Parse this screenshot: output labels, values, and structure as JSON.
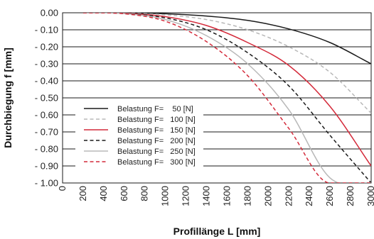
{
  "chart_data": {
    "type": "line",
    "xlabel": "Profillänge L  [mm]",
    "ylabel": "Durchbiegung f [mm]",
    "xlim": [
      0,
      3000
    ],
    "ylim": [
      -1.0,
      0.0
    ],
    "grid": "horizontal",
    "legend_position": "bottom-left",
    "x_ticks": [
      "0",
      "200",
      "400",
      "600",
      "800",
      "1000",
      "1200",
      "1400",
      "1600",
      "1800",
      "2000",
      "2200",
      "2400",
      "2600",
      "2800",
      "3000"
    ],
    "y_ticks": [
      "0.00",
      "- 0.10",
      "- 0.20",
      "- 0.30",
      "- 0.40",
      "- 0.50",
      "- 0.60",
      "- 0.70",
      "- 0.80",
      "- 0.90",
      "- 1.00"
    ],
    "x": [
      200,
      600,
      1000,
      1400,
      1800,
      2200,
      2600,
      3000
    ],
    "series": [
      {
        "name": "Belastung F=    50 [N]",
        "color": "#1a1a1a",
        "dash": "solid",
        "values": [
          0.0,
          -0.001,
          -0.006,
          -0.019,
          -0.045,
          -0.095,
          -0.175,
          -0.3
        ]
      },
      {
        "name": "Belastung F=   100 [N]",
        "color": "#b8b8b8",
        "dash": "dashed",
        "values": [
          0.0,
          -0.002,
          -0.012,
          -0.04,
          -0.1,
          -0.2,
          -0.35,
          -0.59
        ]
      },
      {
        "name": "Belastung F=   150 [N]",
        "color": "#d42a3a",
        "dash": "solid",
        "values": [
          0.0,
          -0.003,
          -0.023,
          -0.075,
          -0.175,
          -0.31,
          -0.55,
          -0.9
        ]
      },
      {
        "name": "Belastung F=   200 [N]",
        "color": "#1a1a1a",
        "dash": "dashed",
        "values": [
          0.0,
          -0.004,
          -0.03,
          -0.1,
          -0.235,
          -0.43,
          -0.72,
          -1.0
        ]
      },
      {
        "name": "Belastung F=   250 [N]",
        "color": "#b8b8b8",
        "dash": "solid",
        "values": [
          0.0,
          -0.005,
          -0.04,
          -0.135,
          -0.3,
          -0.57,
          -0.97,
          -1.0
        ]
      },
      {
        "name": "Belastung F=   300 [N]",
        "color": "#d42a3a",
        "dash": "dashed",
        "values": [
          0.0,
          -0.006,
          -0.05,
          -0.17,
          -0.37,
          -0.68,
          -1.0,
          -1.0
        ]
      }
    ]
  }
}
